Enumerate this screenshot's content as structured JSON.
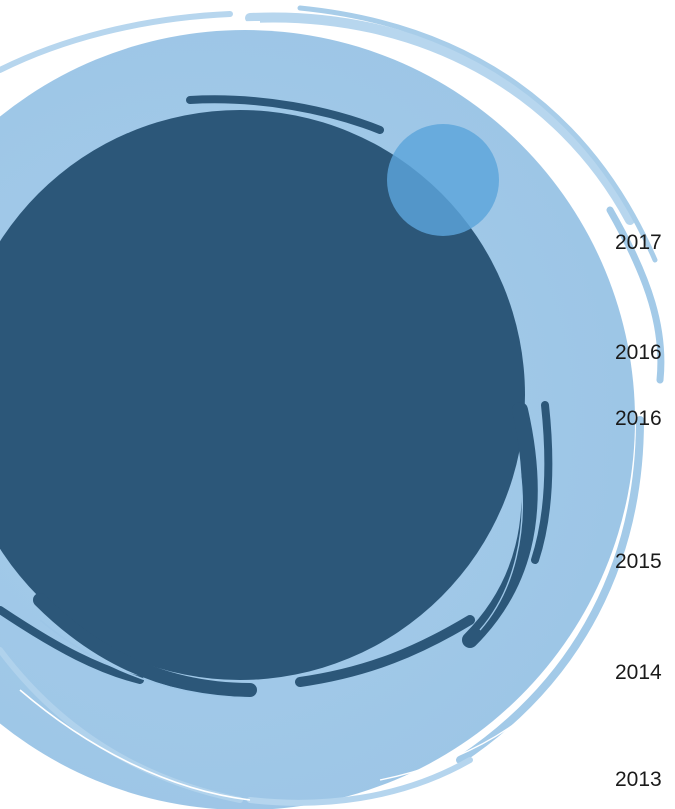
{
  "colors": {
    "outer_ring": "#9dc6e7",
    "outer_ring_light": "#b9d8ef",
    "inner_disc": "#2c5779",
    "bubble": "#5ca5db",
    "text": "#1a1a1a"
  },
  "timeline": {
    "years": [
      "2017",
      "2016",
      "2016",
      "2015",
      "2014",
      "2013"
    ]
  }
}
